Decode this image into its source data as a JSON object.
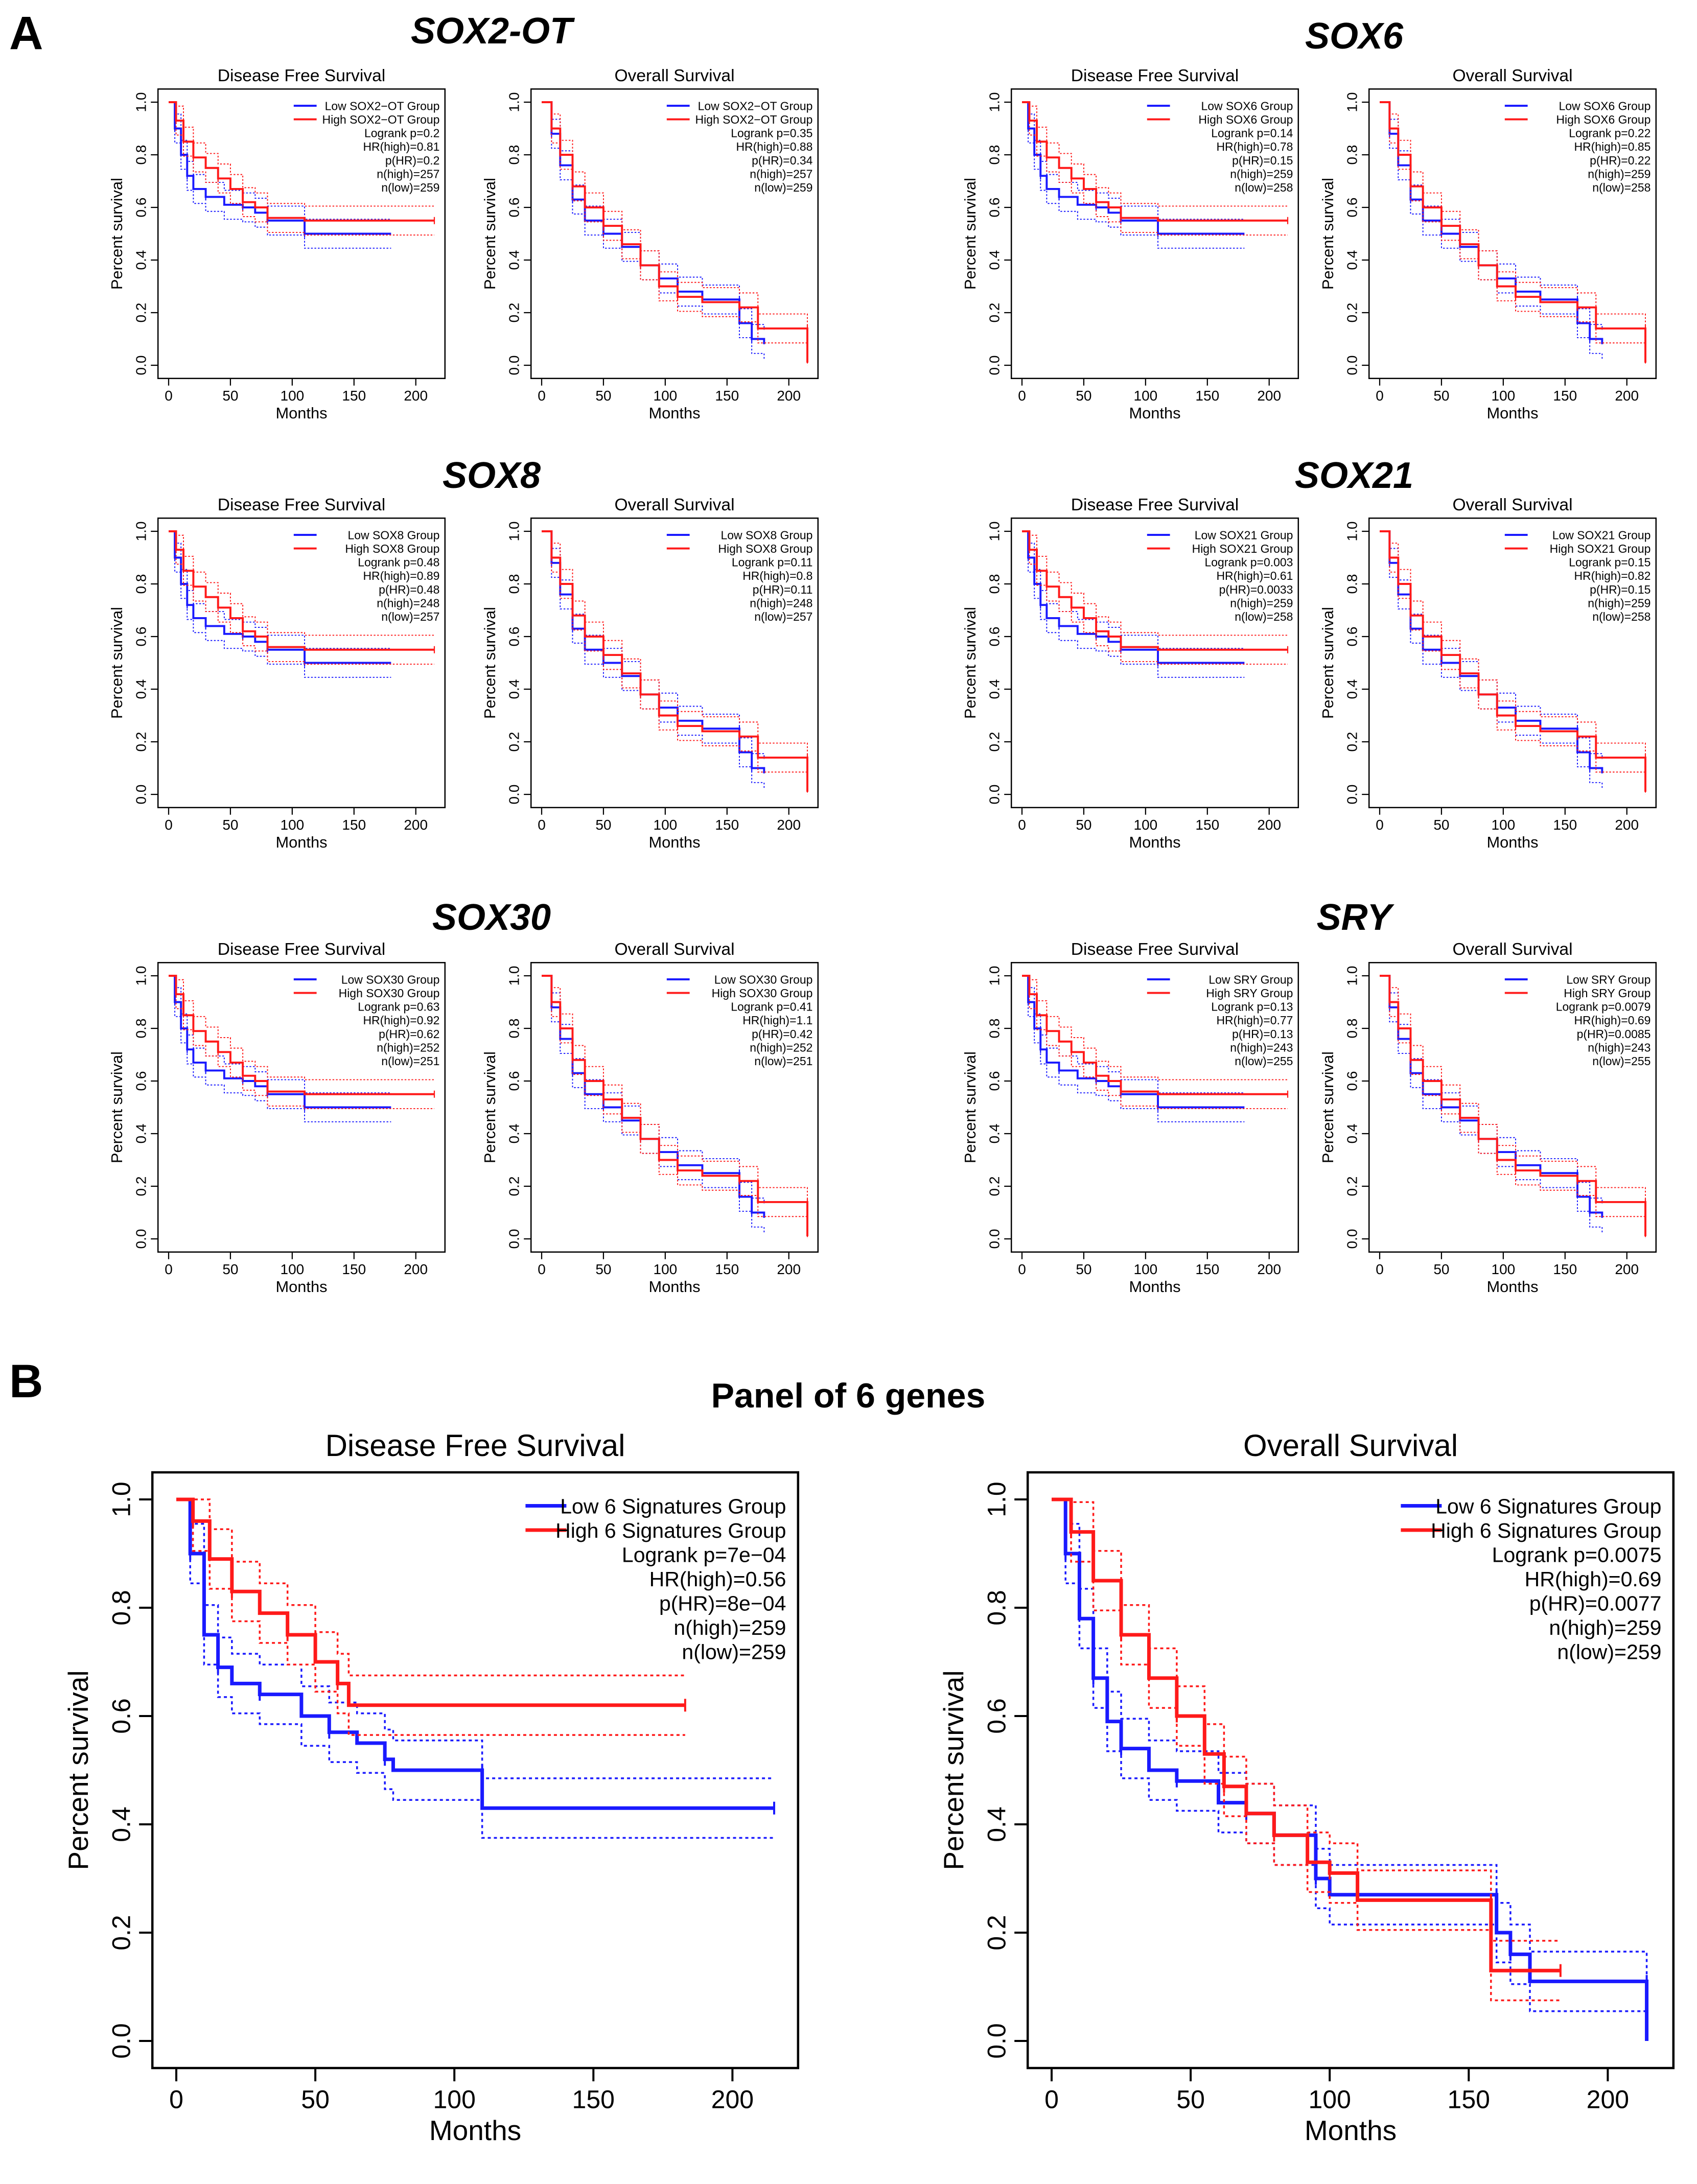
{
  "panel_a": {
    "letter": "A",
    "genes": [
      {
        "gene": "SOX2-OT",
        "dfs": {
          "title": "Disease Free Survival",
          "legend": {
            "low": "Low SOX2−OT Group",
            "high": "High SOX2−OT Group"
          },
          "stats": [
            "Logrank p=0.2",
            "HR(high)=0.81",
            "p(HR)=0.2",
            "n(high)=257",
            "n(low)=259"
          ]
        },
        "os": {
          "title": "Overall Survival",
          "legend": {
            "low": "Low SOX2−OT Group",
            "high": "High SOX2−OT Group"
          },
          "stats": [
            "Logrank p=0.35",
            "HR(high)=0.88",
            "p(HR)=0.34",
            "n(high)=257",
            "n(low)=259"
          ]
        }
      },
      {
        "gene": "SOX6",
        "dfs": {
          "title": "Disease Free Survival",
          "legend": {
            "low": "Low SOX6 Group",
            "high": "High SOX6 Group"
          },
          "stats": [
            "Logrank p=0.14",
            "HR(high)=0.78",
            "p(HR)=0.15",
            "n(high)=259",
            "n(low)=258"
          ]
        },
        "os": {
          "title": "Overall Survival",
          "legend": {
            "low": "Low SOX6 Group",
            "high": "High SOX6 Group"
          },
          "stats": [
            "Logrank p=0.22",
            "HR(high)=0.85",
            "p(HR)=0.22",
            "n(high)=259",
            "n(low)=258"
          ]
        }
      },
      {
        "gene": "SOX8",
        "dfs": {
          "title": "Disease Free Survival",
          "legend": {
            "low": "Low SOX8 Group",
            "high": "High SOX8 Group"
          },
          "stats": [
            "Logrank p=0.48",
            "HR(high)=0.89",
            "p(HR)=0.48",
            "n(high)=248",
            "n(low)=257"
          ]
        },
        "os": {
          "title": "Overall Survival",
          "legend": {
            "low": "Low SOX8 Group",
            "high": "High SOX8 Group"
          },
          "stats": [
            "Logrank p=0.11",
            "HR(high)=0.8",
            "p(HR)=0.11",
            "n(high)=248",
            "n(low)=257"
          ]
        }
      },
      {
        "gene": "SOX21",
        "dfs": {
          "title": "Disease Free Survival",
          "legend": {
            "low": "Low SOX21 Group",
            "high": "High SOX21 Group"
          },
          "stats": [
            "Logrank p=0.003",
            "HR(high)=0.61",
            "p(HR)=0.0033",
            "n(high)=259",
            "n(low)=258"
          ]
        },
        "os": {
          "title": "Overall Survival",
          "legend": {
            "low": "Low SOX21 Group",
            "high": "High SOX21 Group"
          },
          "stats": [
            "Logrank p=0.15",
            "HR(high)=0.82",
            "p(HR)=0.15",
            "n(high)=259",
            "n(low)=258"
          ]
        }
      },
      {
        "gene": "SOX30",
        "dfs": {
          "title": "Disease Free Survival",
          "legend": {
            "low": "Low SOX30 Group",
            "high": "High SOX30 Group"
          },
          "stats": [
            "Logrank p=0.63",
            "HR(high)=0.92",
            "p(HR)=0.62",
            "n(high)=252",
            "n(low)=251"
          ]
        },
        "os": {
          "title": "Overall Survival",
          "legend": {
            "low": "Low SOX30 Group",
            "high": "High SOX30 Group"
          },
          "stats": [
            "Logrank p=0.41",
            "HR(high)=1.1",
            "p(HR)=0.42",
            "n(high)=252",
            "n(low)=251"
          ]
        }
      },
      {
        "gene": "SRY",
        "dfs": {
          "title": "Disease Free Survival",
          "legend": {
            "low": "Low SRY Group",
            "high": "High SRY Group"
          },
          "stats": [
            "Logrank p=0.13",
            "HR(high)=0.77",
            "p(HR)=0.13",
            "n(high)=243",
            "n(low)=255"
          ]
        },
        "os": {
          "title": "Overall Survival",
          "legend": {
            "low": "Low SRY Group",
            "high": "High SRY Group"
          },
          "stats": [
            "Logrank p=0.0079",
            "HR(high)=0.69",
            "p(HR)=0.0085",
            "n(high)=243",
            "n(low)=255"
          ]
        }
      }
    ]
  },
  "panel_b": {
    "letter": "B",
    "title": "Panel of 6 genes",
    "dfs": {
      "title": "Disease Free Survival",
      "legend": {
        "low": "Low 6 Signatures Group",
        "high": "High 6 Signatures Group"
      },
      "stats": [
        "Logrank p=7e−04",
        "HR(high)=0.56",
        "p(HR)=8e−04",
        "n(high)=259",
        "n(low)=259"
      ]
    },
    "os": {
      "title": "Overall Survival",
      "legend": {
        "low": "Low 6 Signatures Group",
        "high": "High 6 Signatures Group"
      },
      "stats": [
        "Logrank p=0.0075",
        "HR(high)=0.69",
        "p(HR)=0.0077",
        "n(high)=259",
        "n(low)=259"
      ]
    }
  },
  "colors": {
    "low": "#1a1aff",
    "high": "#ff1a1a",
    "axis": "#000000"
  },
  "chart_data": {
    "type": "line",
    "xlabel": "Months",
    "ylabel": "Percent survival",
    "xlim": [
      0,
      215
    ],
    "ylim": [
      0,
      1
    ],
    "xticks": [
      "0",
      "50",
      "100",
      "150",
      "200"
    ],
    "yticks": [
      "0.0",
      "0.2",
      "0.4",
      "0.6",
      "0.8",
      "1.0"
    ],
    "curves": {
      "dfs_generic": {
        "low": [
          [
            0,
            1
          ],
          [
            5,
            0.9
          ],
          [
            10,
            0.8
          ],
          [
            15,
            0.72
          ],
          [
            20,
            0.67
          ],
          [
            30,
            0.64
          ],
          [
            45,
            0.61
          ],
          [
            60,
            0.6
          ],
          [
            70,
            0.58
          ],
          [
            80,
            0.55
          ],
          [
            110,
            0.55
          ],
          [
            110,
            0.5
          ],
          [
            180,
            0.5
          ]
        ],
        "high": [
          [
            0,
            1
          ],
          [
            6,
            0.93
          ],
          [
            12,
            0.85
          ],
          [
            20,
            0.79
          ],
          [
            30,
            0.75
          ],
          [
            40,
            0.71
          ],
          [
            50,
            0.67
          ],
          [
            60,
            0.62
          ],
          [
            70,
            0.6
          ],
          [
            80,
            0.56
          ],
          [
            110,
            0.55
          ],
          [
            215,
            0.55
          ]
        ]
      },
      "os_generic": {
        "low": [
          [
            0,
            1
          ],
          [
            8,
            0.88
          ],
          [
            15,
            0.76
          ],
          [
            25,
            0.63
          ],
          [
            35,
            0.55
          ],
          [
            50,
            0.5
          ],
          [
            65,
            0.45
          ],
          [
            80,
            0.38
          ],
          [
            95,
            0.33
          ],
          [
            110,
            0.28
          ],
          [
            130,
            0.25
          ],
          [
            160,
            0.25
          ],
          [
            160,
            0.16
          ],
          [
            170,
            0.1
          ],
          [
            180,
            0.08
          ]
        ],
        "high": [
          [
            0,
            1
          ],
          [
            8,
            0.9
          ],
          [
            15,
            0.8
          ],
          [
            25,
            0.68
          ],
          [
            35,
            0.6
          ],
          [
            50,
            0.53
          ],
          [
            65,
            0.46
          ],
          [
            80,
            0.38
          ],
          [
            95,
            0.3
          ],
          [
            110,
            0.26
          ],
          [
            130,
            0.24
          ],
          [
            160,
            0.22
          ],
          [
            175,
            0.14
          ],
          [
            215,
            0.14
          ],
          [
            215,
            0.01
          ]
        ]
      },
      "dfs_panel": {
        "low": [
          [
            0,
            1
          ],
          [
            5,
            0.9
          ],
          [
            10,
            0.75
          ],
          [
            15,
            0.69
          ],
          [
            20,
            0.66
          ],
          [
            30,
            0.64
          ],
          [
            45,
            0.6
          ],
          [
            55,
            0.57
          ],
          [
            65,
            0.55
          ],
          [
            75,
            0.52
          ],
          [
            78,
            0.5
          ],
          [
            110,
            0.5
          ],
          [
            110,
            0.43
          ],
          [
            215,
            0.43
          ]
        ],
        "high": [
          [
            0,
            1
          ],
          [
            6,
            0.96
          ],
          [
            12,
            0.89
          ],
          [
            20,
            0.83
          ],
          [
            30,
            0.79
          ],
          [
            40,
            0.75
          ],
          [
            50,
            0.7
          ],
          [
            58,
            0.66
          ],
          [
            62,
            0.62
          ],
          [
            183,
            0.62
          ]
        ]
      },
      "os_panel": {
        "low": [
          [
            0,
            1
          ],
          [
            5,
            0.9
          ],
          [
            10,
            0.78
          ],
          [
            15,
            0.67
          ],
          [
            20,
            0.59
          ],
          [
            25,
            0.54
          ],
          [
            35,
            0.5
          ],
          [
            45,
            0.48
          ],
          [
            60,
            0.44
          ],
          [
            70,
            0.42
          ],
          [
            80,
            0.38
          ],
          [
            95,
            0.3
          ],
          [
            100,
            0.27
          ],
          [
            160,
            0.27
          ],
          [
            160,
            0.2
          ],
          [
            165,
            0.16
          ],
          [
            172,
            0.11
          ],
          [
            214,
            0.11
          ],
          [
            214,
            0.0
          ]
        ],
        "high": [
          [
            0,
            1
          ],
          [
            7,
            0.94
          ],
          [
            15,
            0.85
          ],
          [
            25,
            0.75
          ],
          [
            35,
            0.67
          ],
          [
            45,
            0.6
          ],
          [
            55,
            0.53
          ],
          [
            62,
            0.47
          ],
          [
            70,
            0.42
          ],
          [
            80,
            0.38
          ],
          [
            92,
            0.33
          ],
          [
            100,
            0.31
          ],
          [
            110,
            0.26
          ],
          [
            158,
            0.26
          ],
          [
            158,
            0.13
          ],
          [
            183,
            0.13
          ]
        ]
      }
    }
  }
}
